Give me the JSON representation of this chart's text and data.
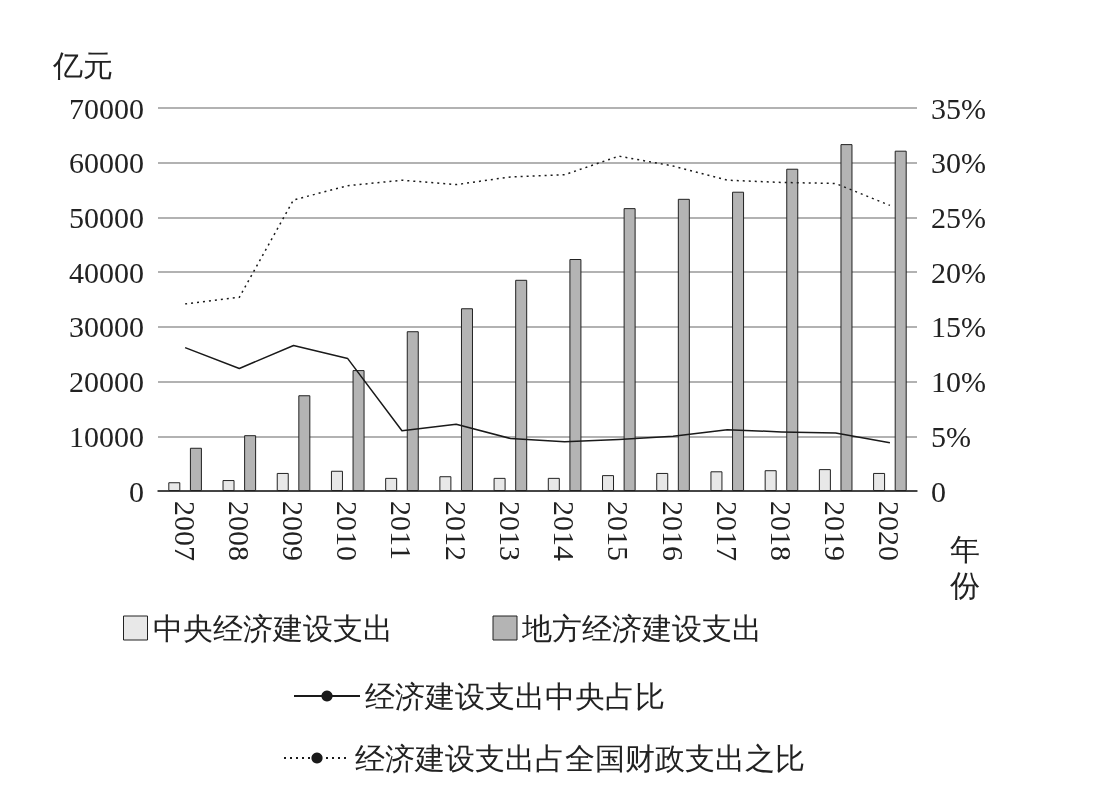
{
  "chart_data": {
    "type": "bar",
    "ylabel": "亿元",
    "xlabel": "年份",
    "categories": [
      "2007",
      "2008",
      "2009",
      "2010",
      "2011",
      "2012",
      "2013",
      "2014",
      "2015",
      "2016",
      "2017",
      "2018",
      "2019",
      "2020"
    ],
    "series": [
      {
        "name": "中央经济建设支出",
        "color": "#e8e8e8",
        "values": [
          1600,
          2000,
          3300,
          3700,
          2400,
          2700,
          2400,
          2400,
          2900,
          3300,
          3600,
          3800,
          4000,
          3300
        ]
      },
      {
        "name": "地方经济建设支出",
        "color": "#b4b4b4",
        "values": [
          7900,
          10200,
          17500,
          22100,
          29200,
          33400,
          38600,
          42400,
          51700,
          53400,
          54700,
          58900,
          63400,
          62200
        ]
      },
      {
        "name": "经济建设支出中央占比",
        "type": "line",
        "axis": "y2",
        "color": "#1a1a1a",
        "line_style": "solid",
        "values": [
          13.1,
          11.2,
          13.3,
          12.1,
          5.5,
          6.1,
          4.8,
          4.5,
          4.7,
          5.0,
          5.6,
          5.4,
          5.3,
          4.4
        ]
      },
      {
        "name": "经济建设支出占全国财政支出之比",
        "type": "line",
        "axis": "y2",
        "color": "#1a1a1a",
        "line_style": "dotted",
        "values": [
          17.1,
          17.7,
          26.6,
          27.9,
          28.4,
          28.0,
          28.7,
          28.9,
          30.6,
          29.7,
          28.4,
          28.2,
          28.1,
          26.1
        ]
      }
    ],
    "ylim": [
      0,
      70000
    ],
    "yticks": [
      0,
      10000,
      20000,
      30000,
      40000,
      50000,
      60000,
      70000
    ],
    "y2lim": [
      0,
      35
    ],
    "y2ticks": [
      {
        "value": 0,
        "label": "0"
      },
      {
        "value": 5,
        "label": "5%"
      },
      {
        "value": 10,
        "label": "10%"
      },
      {
        "value": 15,
        "label": "15%"
      },
      {
        "value": 20,
        "label": "20%"
      },
      {
        "value": 25,
        "label": "25%"
      },
      {
        "value": 30,
        "label": "30%"
      },
      {
        "value": 35,
        "label": "35%"
      }
    ],
    "grid": "y",
    "legend": "bottom",
    "marker": "none"
  }
}
